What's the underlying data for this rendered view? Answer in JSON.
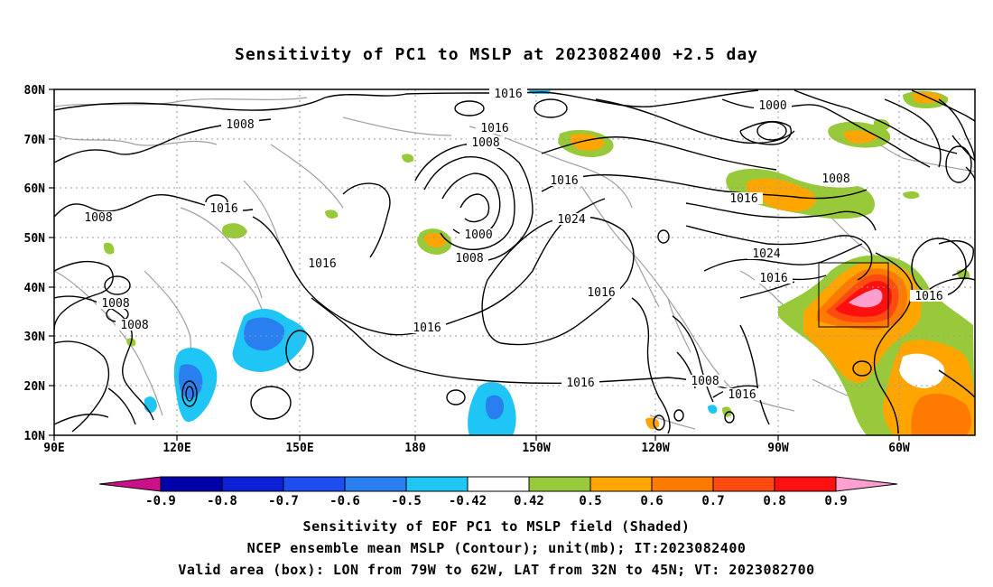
{
  "title": "Sensitivity of PC1 to MSLP at 2023082400 +2.5 day",
  "lat_labels": [
    "80N",
    "70N",
    "60N",
    "50N",
    "40N",
    "30N",
    "20N",
    "10N"
  ],
  "lon_labels": [
    "90E",
    "120E",
    "150E",
    "180",
    "150W",
    "120W",
    "90W",
    "60W"
  ],
  "contour_labels": {
    "l1016_top": "1016",
    "l1008_a": "1008",
    "l1016_b": "1016",
    "l1008_b": "1008",
    "l1000_top": "1000",
    "l1008_c": "1008",
    "l1016_c": "1016",
    "l1008_d": "1008",
    "l1016_d": "1016",
    "l1024_a": "1024",
    "l1016_e": "1016",
    "l1000_mid": "1000",
    "l1008_e": "1008",
    "l1016_f": "1016",
    "l1008_f": "1008",
    "l1008_g": "1008",
    "l1016_g": "1016",
    "l1024_b": "1024",
    "l1016_h": "1016",
    "l1016_i": "1016",
    "l1016_j": "1016",
    "l1016_k": "1016",
    "l1008_h": "1008",
    "l1016_l": "1016"
  },
  "colorbar": {
    "labels": [
      "-0.9",
      "-0.8",
      "-0.7",
      "-0.6",
      "-0.5",
      "-0.42",
      "0.42",
      "0.5",
      "0.6",
      "0.7",
      "0.8",
      "0.9"
    ],
    "colors": [
      "#0000aa",
      "#0a1fd6",
      "#1e4ef0",
      "#2a7ff0",
      "#1ec5f5",
      "#ffffff",
      "#97c93a",
      "#ffa500",
      "#ff7a00",
      "#ff4a10",
      "#ff1010"
    ],
    "low_end_color": "#cc1188",
    "high_end_color": "#ff9fcf"
  },
  "captions": [
    "Sensitivity of EOF PC1 to MSLP field (Shaded)",
    "NCEP ensemble mean MSLP (Contour); unit(mb); IT:2023082400",
    "Valid area (box): LON from 79W to 62W, LAT from 32N to 45N; VT: 2023082700"
  ]
}
